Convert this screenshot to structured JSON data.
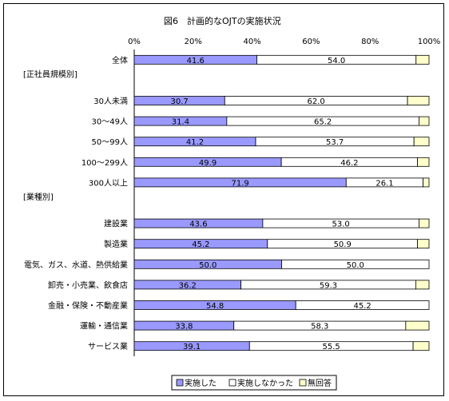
{
  "chart_data": {
    "type": "bar",
    "stacked": true,
    "orientation": "horizontal",
    "title": "図6　計画的なOJTの実施状況",
    "xlim": [
      0,
      100
    ],
    "ticks": [
      "0%",
      "20%",
      "40%",
      "60%",
      "80%",
      "100%"
    ],
    "colors": {
      "実施した": "#9999ff",
      "実施しなかった": "#ffffff",
      "無回答": "#ffffcc"
    },
    "rows": [
      {
        "label": "全体",
        "values": [
          41.6,
          54.0,
          4.4
        ],
        "labels_shown": [
          "41.6",
          "54.0"
        ]
      },
      {
        "label": "[正社員規模別]",
        "header": true
      },
      {
        "label": "30人未満",
        "values": [
          30.7,
          62.0,
          7.3
        ],
        "labels_shown": [
          "30.7",
          "62.0"
        ]
      },
      {
        "label": "30～49人",
        "values": [
          31.4,
          65.2,
          3.4
        ],
        "labels_shown": [
          "31.4",
          "65.2"
        ]
      },
      {
        "label": "50～99人",
        "values": [
          41.2,
          53.7,
          5.1
        ],
        "labels_shown": [
          "41.2",
          "53.7"
        ]
      },
      {
        "label": "100～299人",
        "values": [
          49.9,
          46.2,
          3.9
        ],
        "labels_shown": [
          "49.9",
          "46.2"
        ]
      },
      {
        "label": "300人以上",
        "values": [
          71.9,
          26.1,
          2.0
        ],
        "labels_shown": [
          "71.9",
          "26.1"
        ]
      },
      {
        "label": "[業種別]",
        "header": true
      },
      {
        "label": "建設業",
        "values": [
          43.6,
          53.0,
          3.4
        ],
        "labels_shown": [
          "43.6",
          "53.0"
        ]
      },
      {
        "label": "製造業",
        "values": [
          45.2,
          50.9,
          3.9
        ],
        "labels_shown": [
          "45.2",
          "50.9"
        ]
      },
      {
        "label": "電気、ガス、水道、熱供給業",
        "values": [
          50.0,
          50.0,
          0.0
        ],
        "labels_shown": [
          "50.0",
          "50.0"
        ]
      },
      {
        "label": "卸売・小売業、飲食店",
        "values": [
          36.2,
          59.3,
          4.5
        ],
        "labels_shown": [
          "36.2",
          "59.3"
        ]
      },
      {
        "label": "金融・保険・不動産業",
        "values": [
          54.8,
          45.2,
          0.0
        ],
        "labels_shown": [
          "54.8",
          "45.2"
        ]
      },
      {
        "label": "運輸・通信業",
        "values": [
          33.8,
          58.3,
          7.9
        ],
        "labels_shown": [
          "33.8",
          "58.3"
        ]
      },
      {
        "label": "サービス業",
        "values": [
          39.1,
          55.5,
          5.4
        ],
        "labels_shown": [
          "39.1",
          "55.5"
        ]
      }
    ],
    "series": [
      {
        "name": "実施した"
      },
      {
        "name": "実施しなかった"
      },
      {
        "name": "無回答"
      }
    ],
    "legend": "bottom"
  }
}
